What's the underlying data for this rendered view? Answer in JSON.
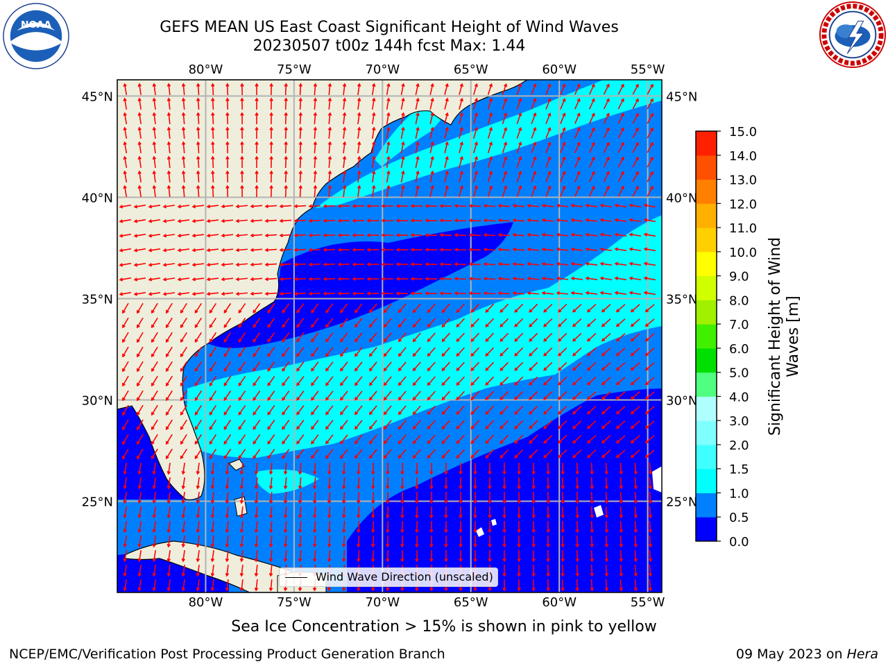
{
  "header": {
    "title_line1": "GEFS MEAN US East Coast Significant Height of Wind Waves",
    "title_line2": "20230507 t00z 144h fcst   Max: 1.44"
  },
  "logos": {
    "left": "noaa-logo",
    "left_text": "NOAA",
    "right": "nws-logo"
  },
  "map": {
    "extent_lon": [
      -85,
      -54.2
    ],
    "extent_lat": [
      20.5,
      45.8
    ],
    "lon_ticks": [
      {
        "value": -80,
        "label": "80°W"
      },
      {
        "value": -75,
        "label": "75°W"
      },
      {
        "value": -70,
        "label": "70°W"
      },
      {
        "value": -65,
        "label": "65°W"
      },
      {
        "value": -60,
        "label": "60°W"
      },
      {
        "value": -55,
        "label": "55°W"
      }
    ],
    "lat_ticks": [
      {
        "value": 45,
        "label": "45°N"
      },
      {
        "value": 40,
        "label": "40°N"
      },
      {
        "value": 35,
        "label": "35°N"
      },
      {
        "value": 30,
        "label": "30°N"
      },
      {
        "value": 25,
        "label": "25°N"
      }
    ],
    "legend_label": "Wind Wave Direction (unscaled)",
    "land_color": "#efeedc",
    "arrow_color": "#ff0000",
    "grid": true
  },
  "colorbar": {
    "label_line1": "Significant Height of Wind",
    "label_line2": "Waves [m]",
    "levels": [
      "0.0",
      "0.5",
      "1.0",
      "1.5",
      "2.0",
      "3.0",
      "4.0",
      "5.0",
      "6.0",
      "7.0",
      "8.0",
      "9.0",
      "10.0",
      "11.0",
      "12.0",
      "13.0",
      "14.0",
      "15.0"
    ],
    "colors": [
      "#0000ff",
      "#0080ff",
      "#00ffff",
      "#40ffff",
      "#80ffff",
      "#b0ffff",
      "#50ff80",
      "#00e000",
      "#40f000",
      "#a0f000",
      "#d0ff00",
      "#ffff00",
      "#ffd000",
      "#ffb000",
      "#ff8000",
      "#ff5000",
      "#ff2000"
    ]
  },
  "footer": {
    "sea_ice_note": "Sea Ice Concentration > 15% is shown in pink to yellow",
    "credit_left": "NCEP/EMC/Verification Post Processing Product Generation Branch",
    "credit_date": "09 May 2023 on ",
    "credit_host": "Hera"
  }
}
